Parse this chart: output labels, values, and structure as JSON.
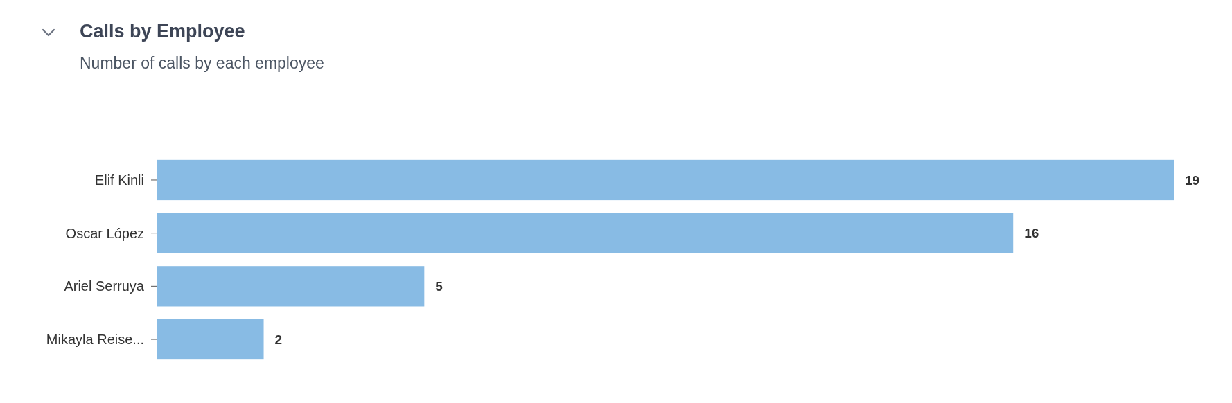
{
  "chart_data": {
    "type": "bar",
    "orientation": "horizontal",
    "title": "Calls by Employee",
    "subtitle": "Number of calls by each employee",
    "categories": [
      "Elif Kinli",
      "Oscar López",
      "Ariel Serruya",
      "Mikayla Reise..."
    ],
    "values": [
      19,
      16,
      5,
      2
    ],
    "color": "#88bbe4",
    "data_labels": true
  }
}
